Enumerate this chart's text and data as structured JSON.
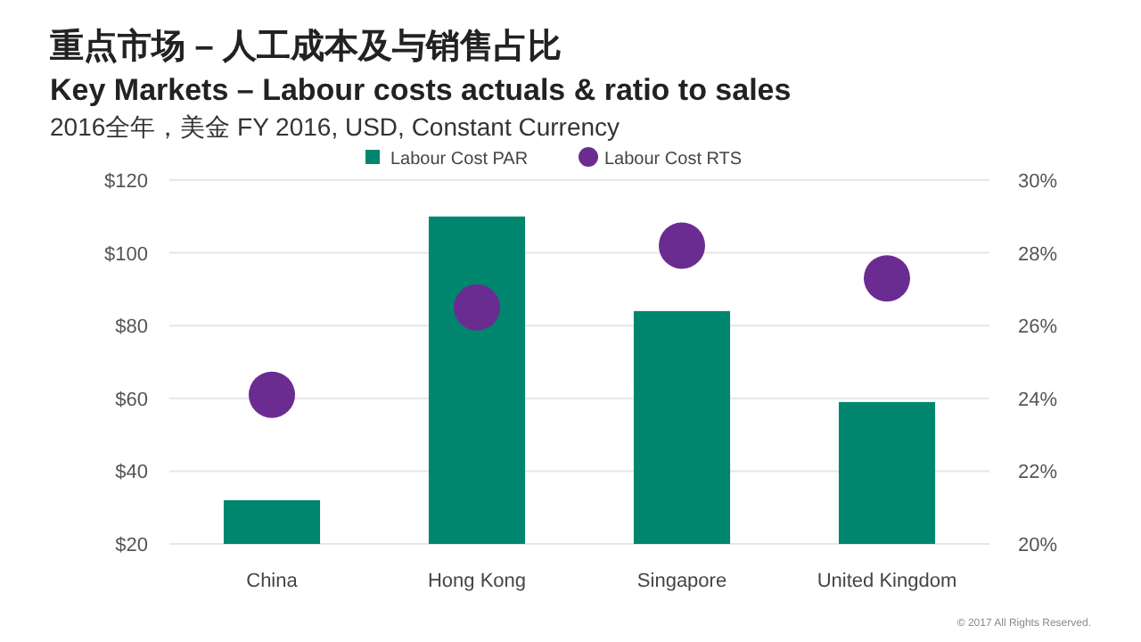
{
  "chart_data": {
    "type": "bar",
    "title": "重点市场 – 人工成本及与销售占比",
    "subtitle": "Key Markets – Labour costs actuals & ratio to sales",
    "annotations": [
      "2016全年，美金 FY 2016, USD, Constant Currency",
      "© 2017 All Rights Reserved."
    ],
    "categories": [
      "China",
      "Hong Kong",
      "Singapore",
      "United Kingdom"
    ],
    "series": [
      {
        "name": "Labour Cost PAR",
        "color": "#00866f",
        "values": [
          32,
          110,
          84,
          59
        ]
      },
      {
        "name": "Labour Cost RTS",
        "type": "scatter",
        "axis": "y2",
        "marker": "circle",
        "color": "#6a2c91",
        "values": [
          24.1,
          26.5,
          28.2,
          27.3
        ]
      }
    ],
    "ylim": [
      20,
      120
    ],
    "yticks": [
      {
        "value": 20,
        "label": "$20"
      },
      {
        "value": 40,
        "label": "$40"
      },
      {
        "value": 60,
        "label": "$60"
      },
      {
        "value": 80,
        "label": "$80"
      },
      {
        "value": 100,
        "label": "$100"
      },
      {
        "value": 120,
        "label": "$120"
      }
    ],
    "y2lim": [
      20,
      30
    ],
    "y2ticks": [
      {
        "value": 20,
        "label": "20%"
      },
      {
        "value": 22,
        "label": "22%"
      },
      {
        "value": 24,
        "label": "24%"
      },
      {
        "value": 26,
        "label": "26%"
      },
      {
        "value": 28,
        "label": "28%"
      },
      {
        "value": 30,
        "label": "30%"
      }
    ],
    "grid": "y",
    "legend": "top"
  }
}
